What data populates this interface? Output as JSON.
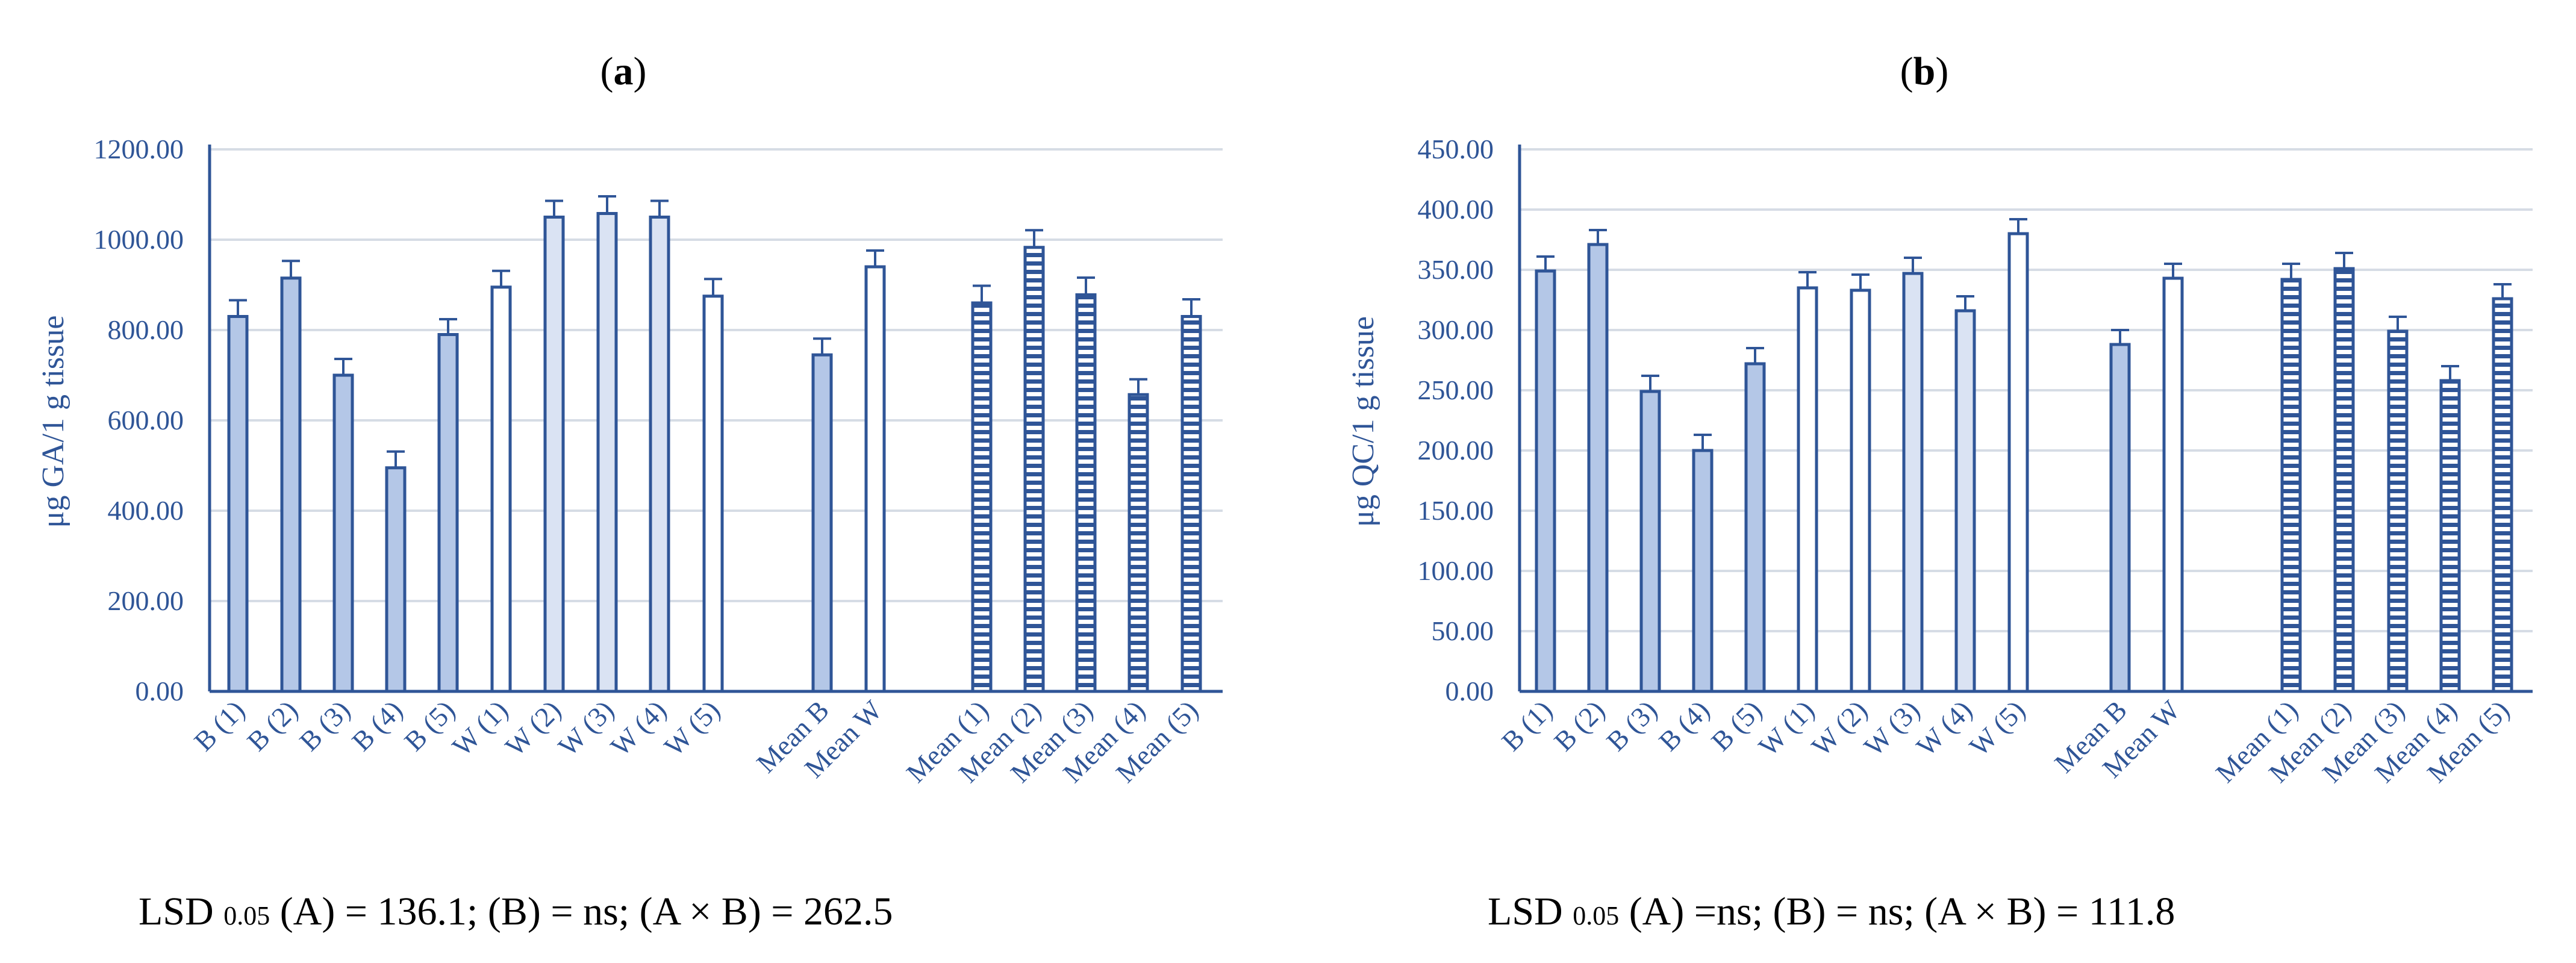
{
  "chart_data": [
    {
      "type": "bar",
      "panel": "a",
      "ylabel": "μg GA/1 g tissue",
      "ylim": [
        0,
        1200
      ],
      "yticks": [
        "0.00",
        "200.00",
        "400.00",
        "600.00",
        "800.00",
        "1000.00",
        "1200.00"
      ],
      "grid": true,
      "categories": [
        "B (1)",
        "B (2)",
        "B (3)",
        "B (4)",
        "B (5)",
        "W (1)",
        "W (2)",
        "W (3)",
        "W (4)",
        "W (5)",
        "Mean B",
        "Mean W",
        "Mean (1)",
        "Mean (2)",
        "Mean (3)",
        "Mean (4)",
        "Mean (5)"
      ],
      "values": [
        830,
        915,
        700,
        495,
        790,
        895,
        1050,
        1058,
        1050,
        875,
        745,
        940,
        860,
        983,
        878,
        657,
        830
      ],
      "errors": [
        36,
        38,
        36,
        36,
        34,
        36,
        36,
        38,
        36,
        38,
        36,
        36,
        38,
        38,
        38,
        34,
        38
      ],
      "styles": [
        "B",
        "B",
        "B",
        "B",
        "B",
        "W",
        "W",
        "W",
        "W",
        "W",
        "B",
        "W",
        "M",
        "M",
        "M",
        "M",
        "M"
      ],
      "caption": "LSD 0.05 (A) = 136.1; (B) = ns; (A × B) = 262.5"
    },
    {
      "type": "bar",
      "panel": "b",
      "ylabel": "μg QC/1 g tissue",
      "ylim": [
        0,
        450
      ],
      "yticks": [
        "0.00",
        "50.00",
        "100.00",
        "150.00",
        "200.00",
        "250.00",
        "300.00",
        "350.00",
        "400.00",
        "450.00"
      ],
      "grid": true,
      "categories": [
        "B (1)",
        "B (2)",
        "B (3)",
        "B (4)",
        "B (5)",
        "W (1)",
        "W (2)",
        "W (3)",
        "W (4)",
        "W (5)",
        "Mean B",
        "Mean W",
        "Mean (1)",
        "Mean (2)",
        "Mean (3)",
        "Mean (4)",
        "Mean (5)"
      ],
      "values": [
        349,
        371,
        249,
        200,
        272,
        335,
        333,
        347,
        316,
        380,
        288,
        343,
        342,
        351,
        299,
        258,
        326
      ],
      "errors": [
        12,
        12,
        13,
        13,
        13,
        13,
        13,
        13,
        12,
        12,
        12,
        12,
        13,
        13,
        12,
        12,
        12
      ],
      "styles": [
        "B",
        "B",
        "B",
        "B",
        "B",
        "W",
        "W",
        "W",
        "W",
        "W",
        "B",
        "W",
        "M",
        "M",
        "M",
        "M",
        "M"
      ],
      "caption": "LSD 0.05 (A) =ns; (B) = ns; (A × B) = 111.8"
    }
  ],
  "panels": {
    "a": {
      "label_open": "(",
      "label_letter": "a",
      "label_close": ")",
      "caption_pre": "LSD ",
      "caption_sub": "0.05",
      "caption_post": " (A) = 136.1; (B) = ns; (A × B) = 262.5"
    },
    "b": {
      "label_open": "(",
      "label_letter": "b",
      "label_close": ")",
      "caption_pre": "LSD ",
      "caption_sub": "0.05",
      "caption_post": " (A) =ns; (B) = ns; (A × B) = 111.8"
    }
  },
  "colors": {
    "axis": "#2f5597",
    "grid": "#d6dce5",
    "bar_stroke": "#2f5597",
    "fill_B": "#b4c7e7",
    "fill_W": "#ffffff",
    "fill_mean_light": "#dae3f3",
    "stripe": "#2f5597"
  }
}
